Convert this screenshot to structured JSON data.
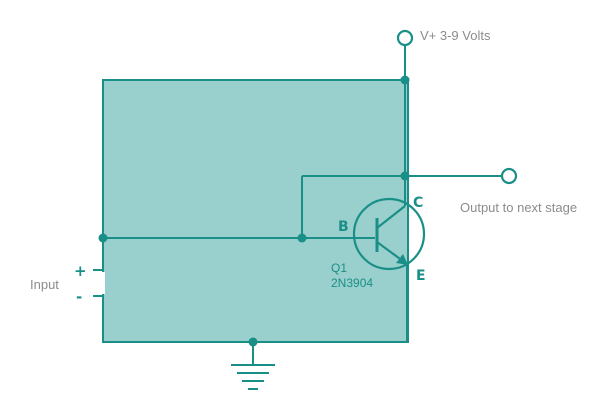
{
  "colors": {
    "wire": "#1a8f87",
    "fill": "#99cfcc",
    "label_gray": "#8c8c8c"
  },
  "labels": {
    "supply": "V+ 3-9 Volts",
    "output": "Output to next stage",
    "input": "Input",
    "input_plus": "+",
    "input_minus": "-"
  },
  "transistor": {
    "ref": "Q1",
    "part": "2N3904",
    "pin_base": "B",
    "pin_collector": "C",
    "pin_emitter": "E",
    "type": "NPN"
  },
  "components": [
    "supply-terminal",
    "output-terminal",
    "input-terminal",
    "npn-transistor",
    "ground-symbol",
    "circuit-block"
  ]
}
